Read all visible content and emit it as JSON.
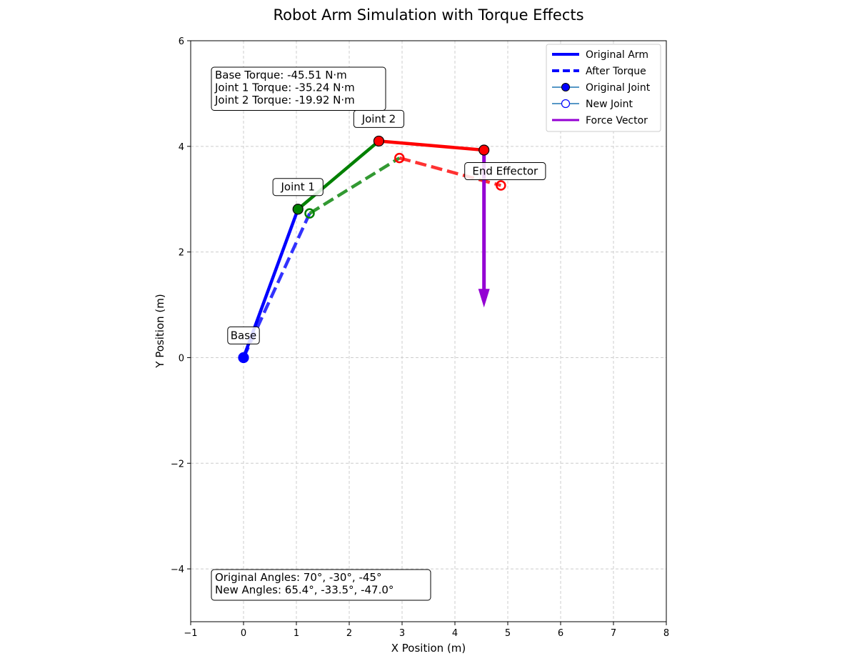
{
  "chart_data": {
    "type": "line",
    "title": "Robot Arm Simulation with Torque Effects",
    "xlabel": "X Position (m)",
    "ylabel": "Y Position (m)",
    "xlim": [
      -1,
      8
    ],
    "ylim": [
      -5,
      6
    ],
    "xticks": [
      "−1",
      "0",
      "1",
      "2",
      "3",
      "4",
      "5",
      "6",
      "7",
      "8"
    ],
    "xtick_values": [
      -1,
      0,
      1,
      2,
      3,
      4,
      5,
      6,
      7,
      8
    ],
    "yticks": [
      "−4",
      "−2",
      "0",
      "2",
      "4",
      "6"
    ],
    "ytick_values": [
      -4,
      -2,
      0,
      2,
      4,
      6
    ],
    "grid": true,
    "legend_position": "top-right",
    "legend": [
      {
        "label": "Original Arm",
        "style": "solid-line",
        "color": "#0000ff"
      },
      {
        "label": "After Torque",
        "style": "dashed-line",
        "color": "#0000ff"
      },
      {
        "label": "Original Joint",
        "style": "filled-marker",
        "color": "#0000ff"
      },
      {
        "label": "New Joint",
        "style": "open-marker",
        "color": "#0000ff"
      },
      {
        "label": "Force Vector",
        "style": "solid-line",
        "color": "#9400d3"
      }
    ],
    "original_arm": {
      "points": [
        [
          0,
          0
        ],
        [
          1.03,
          2.81
        ],
        [
          2.56,
          4.1
        ],
        [
          4.55,
          3.93
        ]
      ],
      "segment_colors": [
        "#0000ff",
        "#008000",
        "#ff0000"
      ],
      "joint_colors": [
        "#0000ff",
        "#008000",
        "#ff0000",
        "#ff0000"
      ]
    },
    "new_arm": {
      "points": [
        [
          0,
          0
        ],
        [
          1.25,
          2.73
        ],
        [
          2.95,
          3.78
        ],
        [
          4.87,
          3.26
        ]
      ],
      "segment_colors": [
        "#0000ff",
        "#008000",
        "#ff0000"
      ],
      "joint_colors": [
        "#008000",
        "#ff0000",
        "#ff0000"
      ]
    },
    "force_vector": {
      "x": 4.55,
      "y_start": 3.93,
      "y_end": 0.95,
      "color": "#9400d3"
    },
    "point_labels": [
      {
        "text": "Base",
        "x": 0,
        "y": 0.42
      },
      {
        "text": "Joint 1",
        "x": 1.03,
        "y": 3.23
      },
      {
        "text": "Joint 2",
        "x": 2.56,
        "y": 4.52
      },
      {
        "text": "End Effector",
        "x": 4.95,
        "y": 3.53
      }
    ],
    "torque_box": [
      "Base Torque: -45.51 N·m",
      "Joint 1 Torque: -35.24 N·m",
      "Joint 2 Torque: -19.92 N·m"
    ],
    "angles_box": [
      "Original Angles: 70°, -30°, -45°",
      "New Angles: 65.4°, -33.5°, -47.0°"
    ],
    "colors": {
      "blue": "#0000ff",
      "green": "#008000",
      "red": "#ff0000",
      "force": "#9400d3",
      "grid": "#cccccc"
    }
  }
}
